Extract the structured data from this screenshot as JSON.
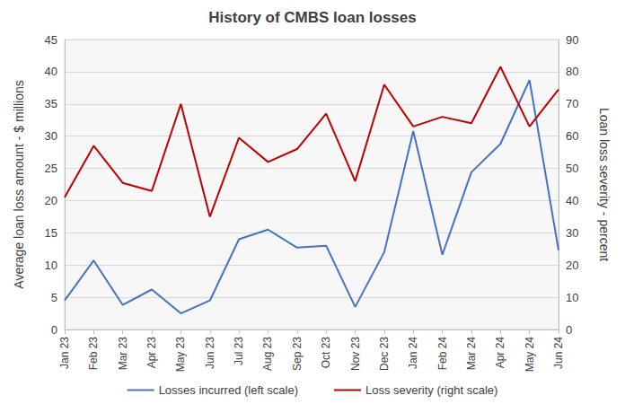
{
  "chart_data": {
    "type": "line",
    "title": "History of CMBS loan losses",
    "y_label": "Average loan loss amount - $ millions",
    "y2_label": "Loan loss severity - percent",
    "categories": [
      "Jan 23",
      "Feb 23",
      "Mar 23",
      "Apr 23",
      "May 23",
      "Jun 23",
      "Jul 23",
      "Aug 23",
      "Sep 23",
      "Oct 23",
      "Nov 23",
      "Dec 23",
      "Jan 24",
      "Feb 24",
      "Mar 24",
      "Apr 24",
      "May 24",
      "Jun 24"
    ],
    "series": [
      {
        "name": "Losses incurred (left scale)",
        "color": "#4472c4",
        "axis": "y",
        "values": [
          4.5,
          10.7,
          3.8,
          6.2,
          2.5,
          4.5,
          14,
          15.5,
          12.7,
          13,
          3.5,
          12,
          30.8,
          11.6,
          24.4,
          28.8,
          38.7,
          12.3
        ]
      },
      {
        "name": "Loss severity (right scale)",
        "color": "#c00000",
        "axis": "y2",
        "values": [
          41,
          57,
          45.5,
          43,
          70,
          35,
          59.5,
          52,
          56,
          67,
          46,
          76,
          63,
          66,
          64,
          81.5,
          63,
          74.5
        ]
      }
    ],
    "ylim": [
      0,
      45
    ],
    "yticks": [
      0,
      5,
      10,
      15,
      20,
      25,
      30,
      35,
      40,
      45
    ],
    "y2lim": [
      0,
      90
    ],
    "y2ticks": [
      0,
      10,
      20,
      30,
      40,
      50,
      60,
      70,
      80,
      90
    ],
    "grid": true,
    "legend": "bottom"
  }
}
